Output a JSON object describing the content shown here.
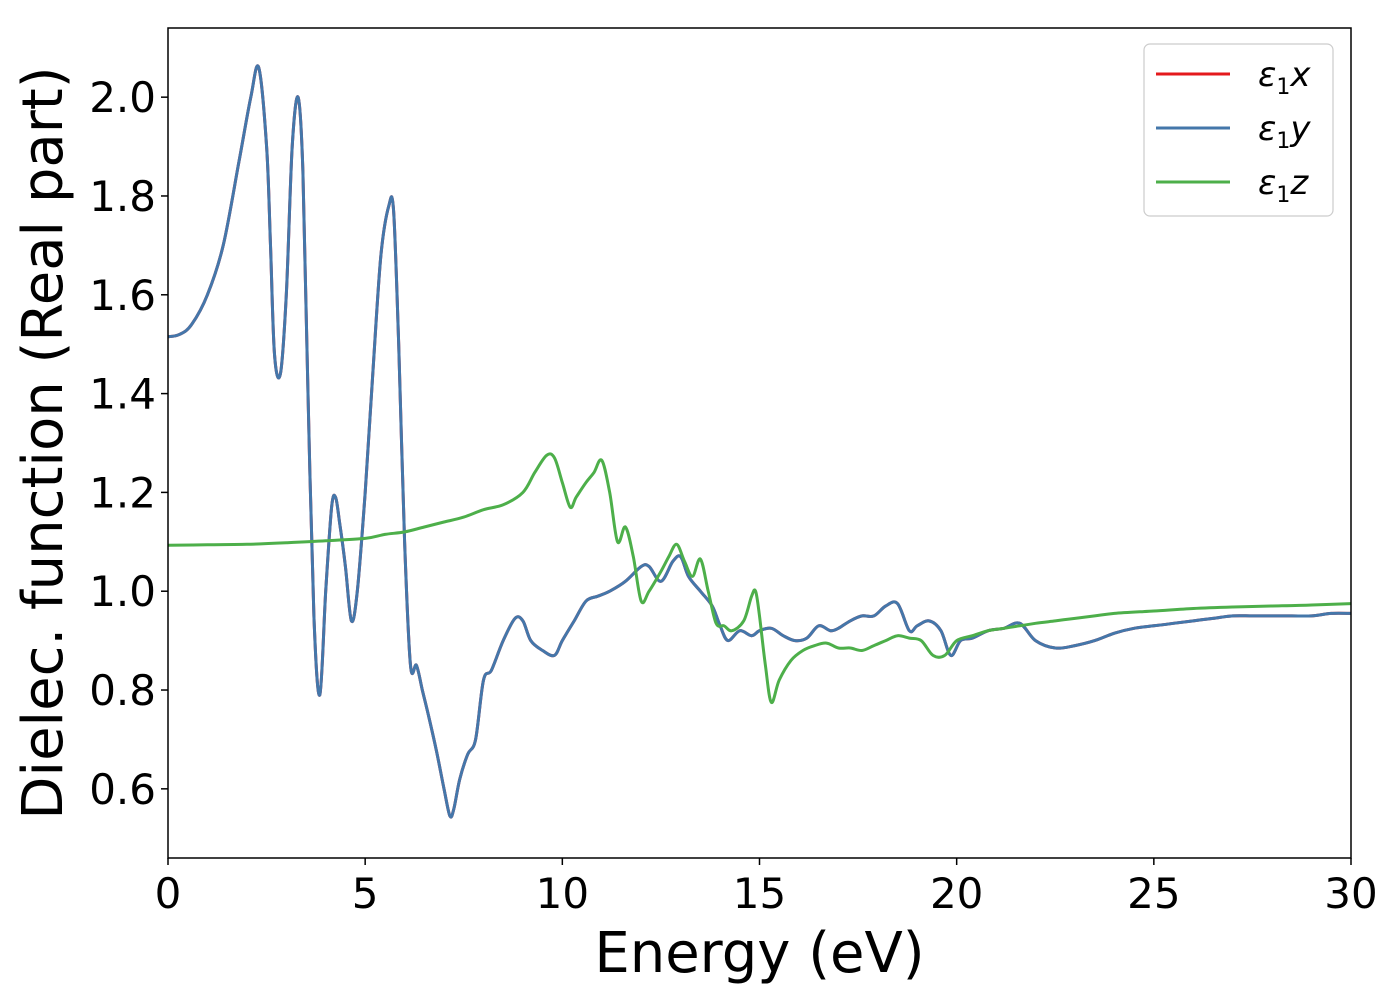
{
  "chart_data": {
    "type": "line",
    "xlabel": "Energy (eV)",
    "ylabel": "Dielec. function (Real part)",
    "xlim": [
      0,
      30
    ],
    "ylim": [
      0.46,
      2.14
    ],
    "xticks": [
      0,
      5,
      10,
      15,
      20,
      25,
      30
    ],
    "yticks": [
      0.6,
      0.8,
      1.0,
      1.2,
      1.4,
      1.6,
      1.8,
      2.0
    ],
    "xtick_labels": [
      "0",
      "5",
      "10",
      "15",
      "20",
      "25",
      "30"
    ],
    "ytick_labels": [
      "0.6",
      "0.8",
      "1.0",
      "1.2",
      "1.4",
      "1.6",
      "1.8",
      "2.0"
    ],
    "grid": false,
    "legend_position": "top-right",
    "series": [
      {
        "name": "ε1x",
        "legend_main": "ε",
        "legend_sub": "1",
        "legend_suffix": "x",
        "color": "#e41a1c",
        "x": [
          0,
          0.3,
          0.6,
          1.0,
          1.4,
          1.8,
          2.1,
          2.3,
          2.5,
          2.6,
          2.7,
          2.85,
          3.0,
          3.15,
          3.3,
          3.42,
          3.55,
          3.7,
          3.85,
          4.0,
          4.15,
          4.25,
          4.35,
          4.5,
          4.65,
          4.8,
          5.0,
          5.2,
          5.4,
          5.6,
          5.72,
          5.85,
          6.0,
          6.15,
          6.3,
          6.45,
          6.6,
          6.8,
          7.0,
          7.15,
          7.25,
          7.4,
          7.6,
          7.8,
          8.0,
          8.2,
          8.5,
          8.8,
          9.0,
          9.2,
          9.5,
          9.8,
          10.0,
          10.3,
          10.6,
          10.9,
          11.2,
          11.6,
          12.0,
          12.2,
          12.5,
          12.8,
          13.0,
          13.2,
          13.5,
          13.8,
          14.0,
          14.2,
          14.5,
          14.8,
          15.0,
          15.3,
          15.6,
          15.9,
          16.2,
          16.5,
          16.8,
          17.0,
          17.3,
          17.6,
          17.9,
          18.2,
          18.5,
          18.8,
          19.0,
          19.3,
          19.6,
          19.85,
          20.1,
          20.4,
          20.8,
          21.2,
          21.6,
          22.0,
          22.5,
          23.0,
          23.5,
          24.0,
          24.5,
          25.0,
          25.5,
          26.0,
          26.5,
          27.0,
          27.5,
          28.0,
          28.5,
          29.0,
          29.5,
          30.0
        ],
        "y": [
          1.515,
          1.52,
          1.54,
          1.6,
          1.7,
          1.87,
          2.0,
          2.06,
          1.9,
          1.7,
          1.48,
          1.44,
          1.6,
          1.9,
          2.0,
          1.85,
          1.4,
          0.95,
          0.79,
          1.0,
          1.17,
          1.19,
          1.14,
          1.05,
          0.94,
          1.0,
          1.2,
          1.45,
          1.68,
          1.78,
          1.77,
          1.5,
          1.1,
          0.85,
          0.85,
          0.8,
          0.75,
          0.68,
          0.6,
          0.545,
          0.56,
          0.62,
          0.67,
          0.7,
          0.82,
          0.84,
          0.9,
          0.945,
          0.94,
          0.9,
          0.88,
          0.87,
          0.9,
          0.94,
          0.98,
          0.99,
          1.0,
          1.02,
          1.05,
          1.05,
          1.02,
          1.06,
          1.07,
          1.03,
          1.0,
          0.97,
          0.93,
          0.9,
          0.92,
          0.91,
          0.92,
          0.925,
          0.91,
          0.9,
          0.905,
          0.93,
          0.92,
          0.925,
          0.94,
          0.95,
          0.95,
          0.97,
          0.975,
          0.92,
          0.93,
          0.94,
          0.92,
          0.87,
          0.9,
          0.905,
          0.92,
          0.925,
          0.935,
          0.9,
          0.885,
          0.89,
          0.9,
          0.915,
          0.925,
          0.93,
          0.935,
          0.94,
          0.945,
          0.95,
          0.95,
          0.95,
          0.95,
          0.95,
          0.955,
          0.955
        ]
      },
      {
        "name": "ε1y",
        "legend_main": "ε",
        "legend_sub": "1",
        "legend_suffix": "y",
        "color": "#4477aa",
        "same_as": "ε1x"
      },
      {
        "name": "ε1z",
        "legend_main": "ε",
        "legend_sub": "1",
        "legend_suffix": "z",
        "color": "#4daf4a",
        "x": [
          0,
          1,
          2,
          3,
          4,
          5,
          5.5,
          6.0,
          6.5,
          7.0,
          7.5,
          8.0,
          8.5,
          9.0,
          9.3,
          9.6,
          9.8,
          10.0,
          10.2,
          10.35,
          10.6,
          10.8,
          11.0,
          11.2,
          11.4,
          11.6,
          11.8,
          12.0,
          12.2,
          12.5,
          12.7,
          12.9,
          13.1,
          13.3,
          13.5,
          13.7,
          13.9,
          14.1,
          14.3,
          14.6,
          14.8,
          14.9,
          15.0,
          15.15,
          15.3,
          15.5,
          15.8,
          16.1,
          16.4,
          16.7,
          17.0,
          17.3,
          17.6,
          17.9,
          18.2,
          18.5,
          18.8,
          19.1,
          19.4,
          19.7,
          20.0,
          20.4,
          20.8,
          21.2,
          21.6,
          22.0,
          22.5,
          23.0,
          23.5,
          24.0,
          25.0,
          26.0,
          27.0,
          28.0,
          29.0,
          30.0
        ],
        "y": [
          1.093,
          1.094,
          1.095,
          1.098,
          1.102,
          1.107,
          1.115,
          1.12,
          1.13,
          1.14,
          1.15,
          1.165,
          1.175,
          1.2,
          1.24,
          1.275,
          1.27,
          1.22,
          1.17,
          1.19,
          1.22,
          1.24,
          1.265,
          1.2,
          1.1,
          1.13,
          1.07,
          0.98,
          1.0,
          1.04,
          1.07,
          1.095,
          1.06,
          1.03,
          1.065,
          1.0,
          0.935,
          0.93,
          0.92,
          0.94,
          0.99,
          1.0,
          0.95,
          0.85,
          0.775,
          0.82,
          0.86,
          0.88,
          0.89,
          0.895,
          0.885,
          0.885,
          0.88,
          0.89,
          0.9,
          0.91,
          0.905,
          0.9,
          0.87,
          0.87,
          0.9,
          0.91,
          0.92,
          0.925,
          0.93,
          0.935,
          0.94,
          0.945,
          0.95,
          0.955,
          0.96,
          0.965,
          0.968,
          0.97,
          0.972,
          0.975
        ]
      }
    ]
  }
}
